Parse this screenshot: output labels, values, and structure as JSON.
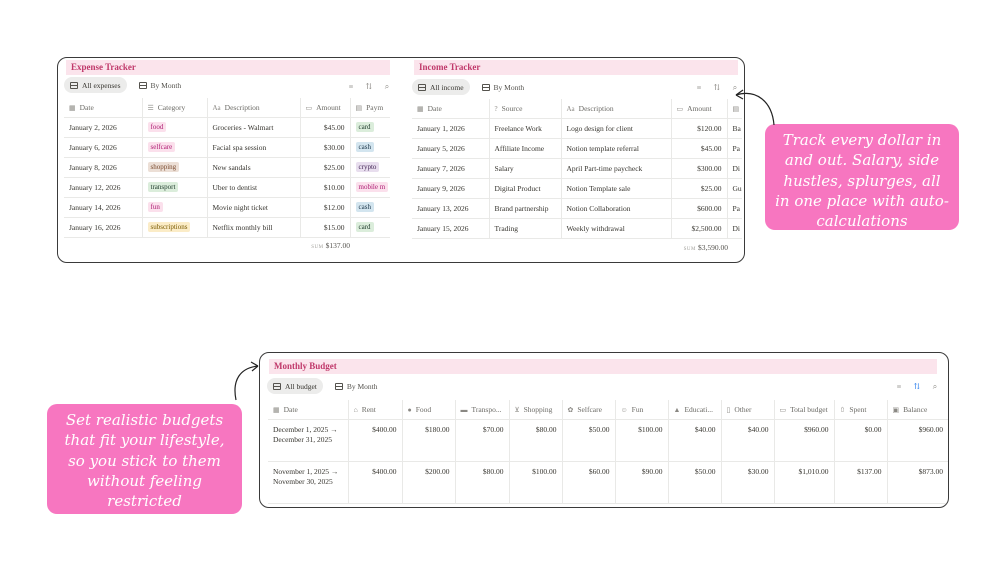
{
  "expense": {
    "title": "Expense Tracker",
    "views": [
      "All expenses",
      "By Month"
    ],
    "columns": [
      {
        "icon": "calendar-icon",
        "label": "Date"
      },
      {
        "icon": "list-icon",
        "label": "Category"
      },
      {
        "icon": "text-icon",
        "label": "Description"
      },
      {
        "icon": "money-icon",
        "label": "Amount"
      },
      {
        "icon": "payment-icon",
        "label": "Paym"
      }
    ],
    "rows": [
      {
        "date": "January 2, 2026",
        "category": "food",
        "description": "Groceries - Walmart",
        "amount": "$45.00",
        "payment": "card"
      },
      {
        "date": "January 6, 2026",
        "category": "selfcare",
        "description": "Facial spa session",
        "amount": "$30.00",
        "payment": "cash"
      },
      {
        "date": "January 8, 2026",
        "category": "shopping",
        "description": "New sandals",
        "amount": "$25.00",
        "payment": "crypto"
      },
      {
        "date": "January 12, 2026",
        "category": "transport",
        "description": "Uber to dentist",
        "amount": "$10.00",
        "payment": "mobile m"
      },
      {
        "date": "January 14, 2026",
        "category": "fun",
        "description": "Movie night ticket",
        "amount": "$12.00",
        "payment": "cash"
      },
      {
        "date": "January 16, 2026",
        "category": "subscriptions",
        "description": "Netflix monthly bill",
        "amount": "$15.00",
        "payment": "card"
      }
    ],
    "sum_label": "SUM",
    "sum_value": "$137.00"
  },
  "income": {
    "title": "Income Tracker",
    "views": [
      "All income",
      "By Month"
    ],
    "columns": [
      {
        "icon": "calendar-icon",
        "label": "Date"
      },
      {
        "icon": "question-icon",
        "label": "Source"
      },
      {
        "icon": "text-icon",
        "label": "Description"
      },
      {
        "icon": "money-icon",
        "label": "Amount"
      },
      {
        "icon": "payment-icon",
        "label": ""
      }
    ],
    "rows": [
      {
        "date": "January 1, 2026",
        "source": "Freelance Work",
        "description": "Logo design for client",
        "amount": "$120.00",
        "extra": "Ba"
      },
      {
        "date": "January 5, 2026",
        "source": "Affiliate Income",
        "description": "Notion template referral",
        "amount": "$45.00",
        "extra": "Pa"
      },
      {
        "date": "January 7, 2026",
        "source": "Salary",
        "description": "April Part-time paycheck",
        "amount": "$300.00",
        "extra": "Di"
      },
      {
        "date": "January 9, 2026",
        "source": "Digital Product",
        "description": "Notion Template sale",
        "amount": "$25.00",
        "extra": "Gu"
      },
      {
        "date": "January 13, 2026",
        "source": "Brand partnership",
        "description": "Notion Collaboration",
        "amount": "$600.00",
        "extra": "Pa"
      },
      {
        "date": "January 15, 2026",
        "source": "Trading",
        "description": "Weekly withdrawal",
        "amount": "$2,500.00",
        "extra": "Di"
      }
    ],
    "sum_label": "SUM",
    "sum_value": "$3,590.00"
  },
  "budget": {
    "title": "Monthly Budget",
    "views": [
      "All budget",
      "By Month"
    ],
    "columns": [
      "Date",
      "Rent",
      "Food",
      "Transpo...",
      "Shopping",
      "Selfcare",
      "Fun",
      "Educati...",
      "Other",
      "Total budget",
      "Spent",
      "Balance"
    ],
    "column_icons": [
      "calendar-icon",
      "home-icon",
      "apple-icon",
      "car-icon",
      "cart-icon",
      "selfcare-icon",
      "fun-icon",
      "school-icon",
      "other-icon",
      "money-icon",
      "spent-icon",
      "balance-icon"
    ],
    "rows": [
      {
        "date": "December 1, 2025 → December 31, 2025",
        "values": [
          "$400.00",
          "$180.00",
          "$70.00",
          "$80.00",
          "$50.00",
          "$100.00",
          "$40.00",
          "$40.00",
          "$960.00",
          "$0.00",
          "$960.00"
        ]
      },
      {
        "date": "November 1, 2025 → November 30, 2025",
        "values": [
          "$400.00",
          "$200.00",
          "$80.00",
          "$100.00",
          "$60.00",
          "$90.00",
          "$50.00",
          "$30.00",
          "$1,010.00",
          "$137.00",
          "$873.00"
        ]
      }
    ]
  },
  "tag_colors": {
    "food": {
      "bg": "#fbe0ec",
      "fg": "#ad1a72"
    },
    "selfcare": {
      "bg": "#fbe0ec",
      "fg": "#ad1a72"
    },
    "shopping": {
      "bg": "#ecdfd6",
      "fg": "#7a4a2e"
    },
    "transport": {
      "bg": "#dbeddb",
      "fg": "#1c3829"
    },
    "fun": {
      "bg": "#fbe0ec",
      "fg": "#ad1a72"
    },
    "subscriptions": {
      "bg": "#fbecc7",
      "fg": "#7a5a00"
    },
    "card": {
      "bg": "#dbeddb",
      "fg": "#1c3829"
    },
    "cash": {
      "bg": "#d3e5ef",
      "fg": "#183347"
    },
    "crypto": {
      "bg": "#e8deee",
      "fg": "#412454"
    },
    "mobile m": {
      "bg": "#fbe0ec",
      "fg": "#ad1a72"
    }
  },
  "callouts": {
    "right": "Track every dollar in and out. Salary, side hustles, splurges, all in one place with auto-calculations",
    "left": "Set realistic budgets that fit your lifestyle, so you stick to them without feeling restricted"
  },
  "colors": {
    "accent": "#f776c0",
    "title_bg": "#fbe4ec",
    "title_fg": "#c0396b"
  }
}
